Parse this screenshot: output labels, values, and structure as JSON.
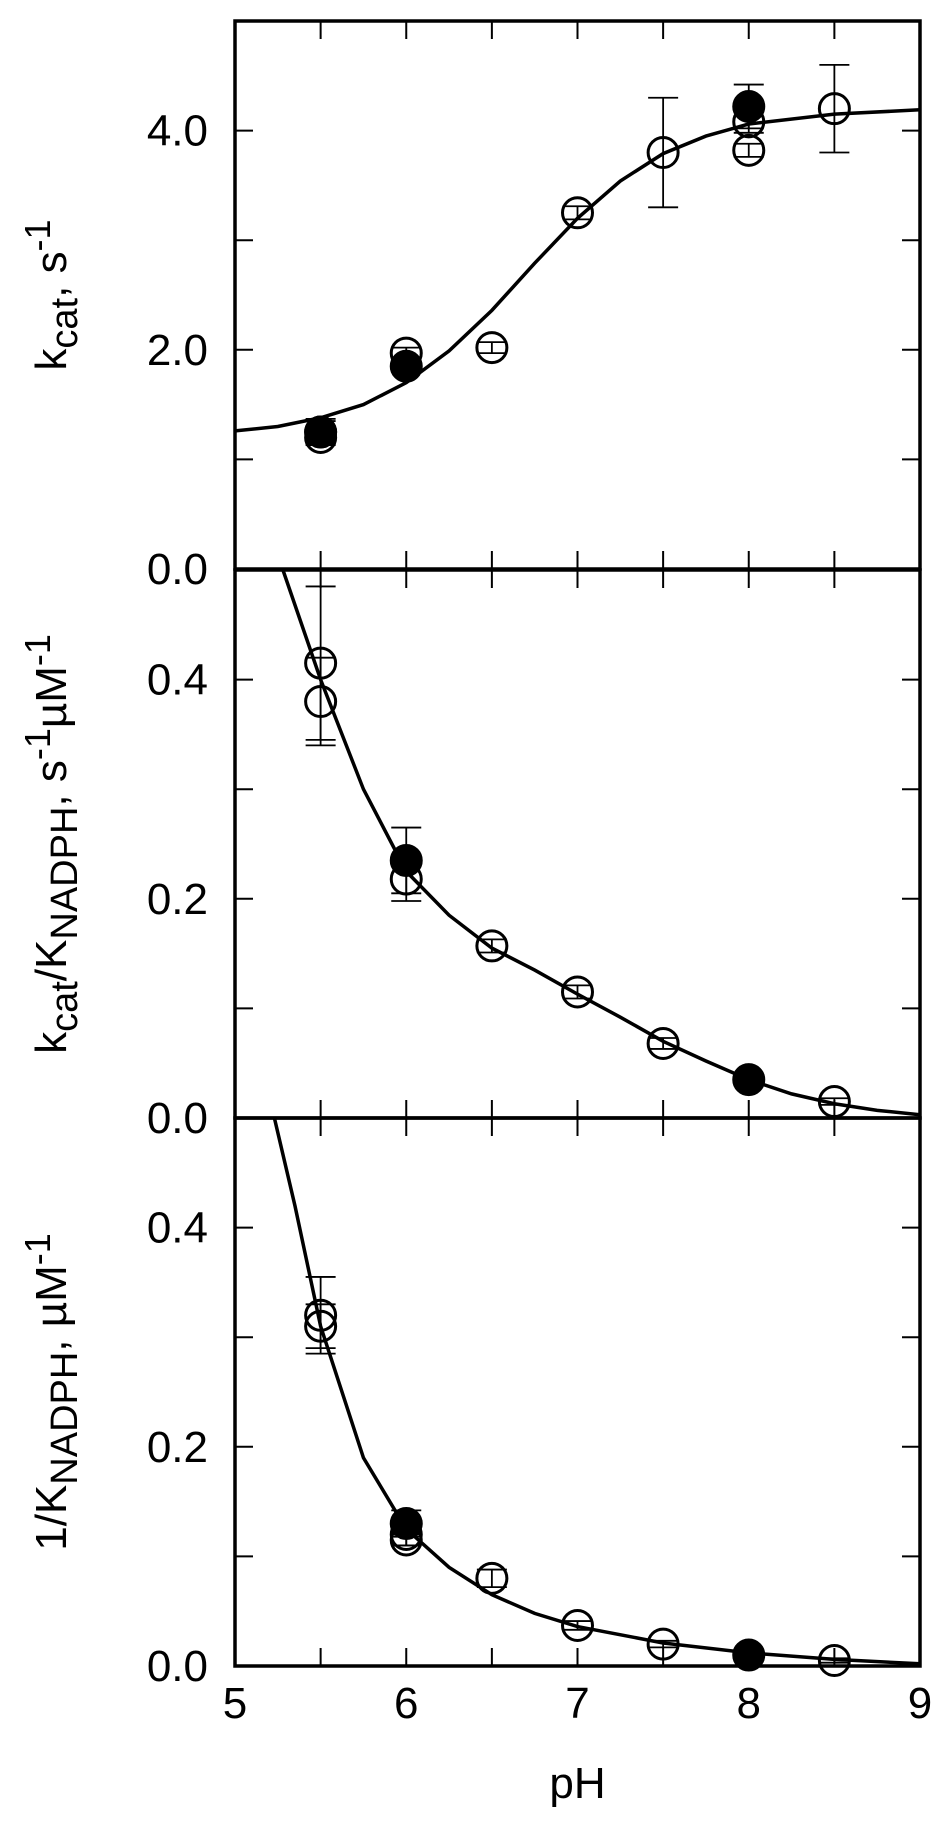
{
  "chart_data": [
    {
      "type": "scatter",
      "ylabel": [
        {
          "text": "k"
        },
        {
          "text": "cat",
          "style": "sub"
        },
        {
          "text": ", s"
        },
        {
          "text": "-1",
          "style": "sup"
        }
      ],
      "xlim": [
        5,
        9
      ],
      "xticks": [
        5,
        6,
        7,
        8,
        9
      ],
      "xminor": [
        5.5,
        6.5,
        7.5,
        8.5
      ],
      "show_xtick_labels": false,
      "ylim": [
        0,
        5
      ],
      "yticks": [
        {
          "value": 0,
          "label": "0.0"
        },
        {
          "value": 2,
          "label": "2.0"
        },
        {
          "value": 4,
          "label": "4.0"
        }
      ],
      "yminor": [
        1,
        3
      ],
      "series": [
        {
          "style": "line",
          "color": "#000000",
          "x": [
            5,
            5.25,
            5.5,
            5.75,
            6,
            6.25,
            6.5,
            6.75,
            7,
            7.25,
            7.5,
            7.75,
            8,
            8.5,
            9
          ],
          "values": [
            1.26,
            1.3,
            1.38,
            1.5,
            1.7,
            1.99,
            2.36,
            2.79,
            3.2,
            3.54,
            3.79,
            3.95,
            4.06,
            4.15,
            4.19
          ]
        },
        {
          "style": "open",
          "color": "#000000",
          "x": [
            5.5,
            5.5,
            6,
            6.5,
            7,
            7.5,
            8,
            8,
            8.5
          ],
          "values": [
            1.25,
            1.2,
            1.97,
            2.02,
            3.25,
            3.8,
            3.82,
            4.08,
            4.2
          ],
          "errors": [
            0.12,
            0.06,
            0.05,
            0.05,
            0.06,
            0.5,
            0.06,
            0.1,
            0.4
          ]
        },
        {
          "style": "filled",
          "color": "#000000",
          "x": [
            5.5,
            6,
            8
          ],
          "values": [
            1.25,
            1.85,
            4.22
          ],
          "errors": [
            0.1,
            0.05,
            0.2
          ]
        }
      ]
    },
    {
      "type": "scatter",
      "ylabel": [
        {
          "text": "k"
        },
        {
          "text": "cat",
          "style": "sub"
        },
        {
          "text": "/K"
        },
        {
          "text": "NADPH",
          "style": "sub"
        },
        {
          "text": ", s"
        },
        {
          "text": "-1",
          "style": "sup"
        },
        {
          "text": "µM"
        },
        {
          "text": "-1",
          "style": "sup"
        }
      ],
      "xlim": [
        5,
        9
      ],
      "xticks": [
        5,
        6,
        7,
        8,
        9
      ],
      "xminor": [
        5.5,
        6.5,
        7.5,
        8.5
      ],
      "show_xtick_labels": false,
      "ylim": [
        0,
        0.5
      ],
      "yticks": [
        {
          "value": 0,
          "label": "0.0"
        },
        {
          "value": 0.2,
          "label": "0.2"
        },
        {
          "value": 0.4,
          "label": "0.4"
        }
      ],
      "yminor": [
        0.1,
        0.3
      ],
      "series": [
        {
          "style": "line",
          "color": "#000000",
          "x": [
            5.28,
            5.5,
            5.75,
            6,
            6.25,
            6.5,
            6.75,
            7,
            7.25,
            7.5,
            7.75,
            8,
            8.25,
            8.5,
            8.75,
            9
          ],
          "values": [
            0.5,
            0.4,
            0.3,
            0.225,
            0.185,
            0.155,
            0.135,
            0.113,
            0.092,
            0.07,
            0.052,
            0.035,
            0.022,
            0.013,
            0.007,
            0.003
          ]
        },
        {
          "style": "open",
          "color": "#000000",
          "x": [
            5.5,
            5.5,
            6,
            6.5,
            7,
            7.5,
            8.5
          ],
          "values": [
            0.415,
            0.38,
            0.218,
            0.157,
            0.115,
            0.068,
            0.015
          ],
          "errors": [
            0.07,
            0.04,
            0.02,
            0.006,
            0.006,
            0.005,
            0.003
          ]
        },
        {
          "style": "filled",
          "color": "#000000",
          "x": [
            6,
            8
          ],
          "values": [
            0.235,
            0.035
          ],
          "errors": [
            0.03,
            0.004
          ]
        }
      ]
    },
    {
      "type": "scatter",
      "ylabel": [
        {
          "text": "1/K"
        },
        {
          "text": "NADPH",
          "style": "sub"
        },
        {
          "text": ", µM"
        },
        {
          "text": "-1",
          "style": "sup"
        }
      ],
      "xlabel": "pH",
      "xlim": [
        5,
        9
      ],
      "xticks": [
        5,
        6,
        7,
        8,
        9
      ],
      "xminor": [
        5.5,
        6.5,
        7.5,
        8.5
      ],
      "show_xtick_labels": true,
      "ylim": [
        0,
        0.5
      ],
      "yticks": [
        {
          "value": 0,
          "label": "0.0"
        },
        {
          "value": 0.2,
          "label": "0.2"
        },
        {
          "value": 0.4,
          "label": "0.4"
        }
      ],
      "yminor": [
        0.1,
        0.3
      ],
      "series": [
        {
          "style": "line",
          "color": "#000000",
          "x": [
            5.23,
            5.35,
            5.5,
            5.75,
            6,
            6.25,
            6.5,
            6.75,
            7,
            7.5,
            8,
            8.5,
            9
          ],
          "values": [
            0.5,
            0.42,
            0.31,
            0.19,
            0.125,
            0.09,
            0.065,
            0.048,
            0.036,
            0.021,
            0.012,
            0.006,
            0.002
          ]
        },
        {
          "style": "open",
          "color": "#000000",
          "x": [
            5.5,
            5.5,
            6,
            6,
            6.5,
            7,
            7.5,
            8.5
          ],
          "values": [
            0.32,
            0.31,
            0.115,
            0.12,
            0.08,
            0.037,
            0.02,
            0.005
          ],
          "errors": [
            0.035,
            0.02,
            0.005,
            0.01,
            0.008,
            0.004,
            0.003,
            0.002
          ]
        },
        {
          "style": "filled",
          "color": "#000000",
          "x": [
            6,
            8
          ],
          "values": [
            0.13,
            0.01
          ],
          "errors": [
            0.012,
            0.002
          ]
        }
      ]
    }
  ]
}
